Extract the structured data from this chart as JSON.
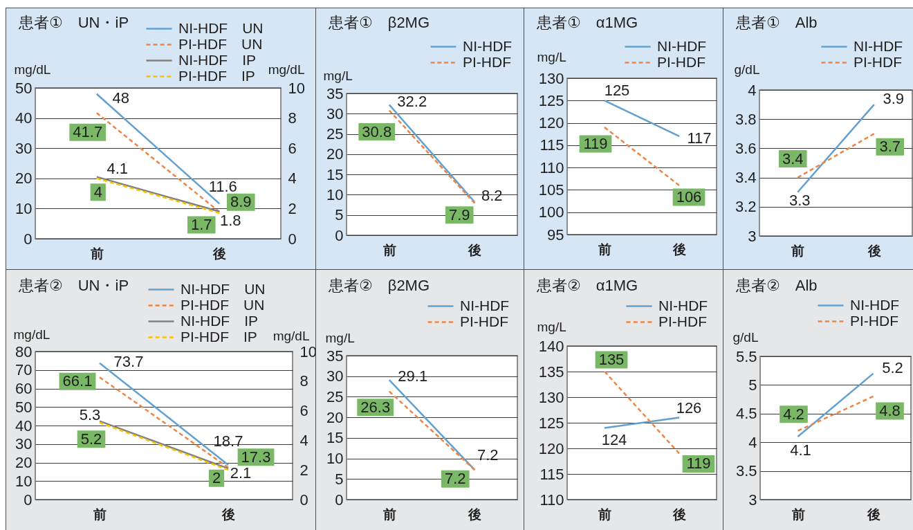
{
  "chart_data": [
    {
      "type": "line",
      "title": "患者①　UN・iP",
      "categories": [
        "前",
        "後"
      ],
      "ylabel": "mg/dL",
      "y2label": "mg/dL",
      "series": [
        {
          "name": "NI-HDF　UN",
          "color": "#62a0d0",
          "values": [
            48,
            11.6
          ],
          "line_style": "solid"
        },
        {
          "name": "PI-HDF　UN",
          "color": "#ee8544",
          "values": [
            41.7,
            8.9
          ],
          "line_style": "dashed"
        },
        {
          "name": "NI-HDF　IP",
          "color": "#808080",
          "values": [
            4.1,
            1.8
          ],
          "line_style": "solid",
          "axis": "y2"
        },
        {
          "name": "PI-HDF　IP",
          "color": "#f9c300",
          "values": [
            4,
            1.7
          ],
          "line_style": "dashed",
          "axis": "y2"
        }
      ],
      "ylim": [
        0,
        50
      ],
      "yticks": [
        0,
        10,
        20,
        30,
        40,
        50
      ],
      "y2lim": [
        0,
        10
      ],
      "y2ticks": [
        0,
        2,
        4,
        6,
        8,
        10
      ],
      "data_labels": true,
      "grid": "y",
      "legend": "top right"
    },
    {
      "type": "line",
      "title": "患者①　β2MG",
      "categories": [
        "前",
        "後"
      ],
      "ylabel": "mg/L",
      "series": [
        {
          "name": "NI-HDF",
          "color": "#62a0d0",
          "values": [
            32.2,
            8.2
          ],
          "line_style": "solid"
        },
        {
          "name": "PI-HDF",
          "color": "#ee8544",
          "values": [
            30.8,
            7.9
          ],
          "line_style": "dashed"
        }
      ],
      "ylim": [
        0,
        35
      ],
      "yticks": [
        0,
        5,
        10,
        15,
        20,
        25,
        30,
        35
      ],
      "data_labels": true,
      "grid": "y",
      "legend": "top right"
    },
    {
      "type": "line",
      "title": "患者①　α1MG",
      "categories": [
        "前",
        "後"
      ],
      "ylabel": "mg/L",
      "series": [
        {
          "name": "NI-HDF",
          "color": "#62a0d0",
          "values": [
            125,
            117
          ],
          "line_style": "solid"
        },
        {
          "name": "PI-HDF",
          "color": "#ee8544",
          "values": [
            119,
            106
          ],
          "line_style": "dashed"
        }
      ],
      "ylim": [
        95,
        130
      ],
      "yticks": [
        95,
        100,
        105,
        110,
        115,
        120,
        125,
        130
      ],
      "data_labels": true,
      "grid": "y",
      "legend": "top right"
    },
    {
      "type": "line",
      "title": "患者①　Alb",
      "categories": [
        "前",
        "後"
      ],
      "ylabel": "g/dL",
      "series": [
        {
          "name": "NI-HDF",
          "color": "#62a0d0",
          "values": [
            3.3,
            3.9
          ],
          "line_style": "solid"
        },
        {
          "name": "PI-HDF",
          "color": "#ee8544",
          "values": [
            3.4,
            3.7
          ],
          "line_style": "dashed"
        }
      ],
      "ylim": [
        3,
        4
      ],
      "yticks": [
        3,
        3.2,
        3.4,
        3.6,
        3.8,
        4
      ],
      "data_labels": true,
      "grid": "y",
      "legend": "top right"
    },
    {
      "type": "line",
      "title": "患者②　UN・iP",
      "categories": [
        "前",
        "後"
      ],
      "ylabel": "mg/dL",
      "y2label": "mg/dL",
      "series": [
        {
          "name": "NI-HDF　UN",
          "color": "#62a0d0",
          "values": [
            73.7,
            18.7
          ],
          "line_style": "solid"
        },
        {
          "name": "PI-HDF　UN",
          "color": "#ee8544",
          "values": [
            66.1,
            17.3
          ],
          "line_style": "dashed"
        },
        {
          "name": "NI-HDF　IP",
          "color": "#808080",
          "values": [
            5.3,
            2.1
          ],
          "line_style": "solid",
          "axis": "y2"
        },
        {
          "name": "PI-HDF　IP",
          "color": "#f9c300",
          "values": [
            5.2,
            2
          ],
          "line_style": "dashed",
          "axis": "y2"
        }
      ],
      "ylim": [
        0,
        80
      ],
      "yticks": [
        0,
        10,
        20,
        30,
        40,
        50,
        60,
        70,
        80
      ],
      "y2lim": [
        0,
        10
      ],
      "y2ticks": [
        0,
        2,
        4,
        6,
        8,
        10
      ],
      "data_labels": true,
      "grid": "y",
      "legend": "top right"
    },
    {
      "type": "line",
      "title": "患者②　β2MG",
      "categories": [
        "前",
        "後"
      ],
      "ylabel": "mg/L",
      "series": [
        {
          "name": "NI-HDF",
          "color": "#62a0d0",
          "values": [
            29.1,
            7.2
          ],
          "line_style": "solid"
        },
        {
          "name": "PI-HDF",
          "color": "#ee8544",
          "values": [
            26.3,
            7.2
          ],
          "line_style": "dashed"
        }
      ],
      "ylim": [
        0,
        35
      ],
      "yticks": [
        0,
        5,
        10,
        15,
        20,
        25,
        30,
        35
      ],
      "data_labels": true,
      "grid": "y",
      "legend": "top right"
    },
    {
      "type": "line",
      "title": "患者②　α1MG",
      "categories": [
        "前",
        "後"
      ],
      "ylabel": "mg/L",
      "series": [
        {
          "name": "NI-HDF",
          "color": "#62a0d0",
          "values": [
            124,
            126
          ],
          "line_style": "solid"
        },
        {
          "name": "PI-HDF",
          "color": "#ee8544",
          "values": [
            135,
            119
          ],
          "line_style": "dashed"
        }
      ],
      "ylim": [
        110,
        140
      ],
      "yticks": [
        110,
        115,
        120,
        125,
        130,
        135,
        140
      ],
      "data_labels": true,
      "grid": "y",
      "legend": "top right"
    },
    {
      "type": "line",
      "title": "患者②　Alb",
      "categories": [
        "前",
        "後"
      ],
      "ylabel": "g/dL",
      "series": [
        {
          "name": "NI-HDF",
          "color": "#62a0d0",
          "values": [
            4.1,
            5.2
          ],
          "line_style": "solid"
        },
        {
          "name": "PI-HDF",
          "color": "#ee8544",
          "values": [
            4.2,
            4.8
          ],
          "line_style": "dashed"
        }
      ],
      "ylim": [
        3,
        5.5
      ],
      "yticks": [
        3,
        3.5,
        4,
        4.5,
        5,
        5.5
      ],
      "data_labels": true,
      "grid": "y",
      "legend": "top right"
    }
  ]
}
